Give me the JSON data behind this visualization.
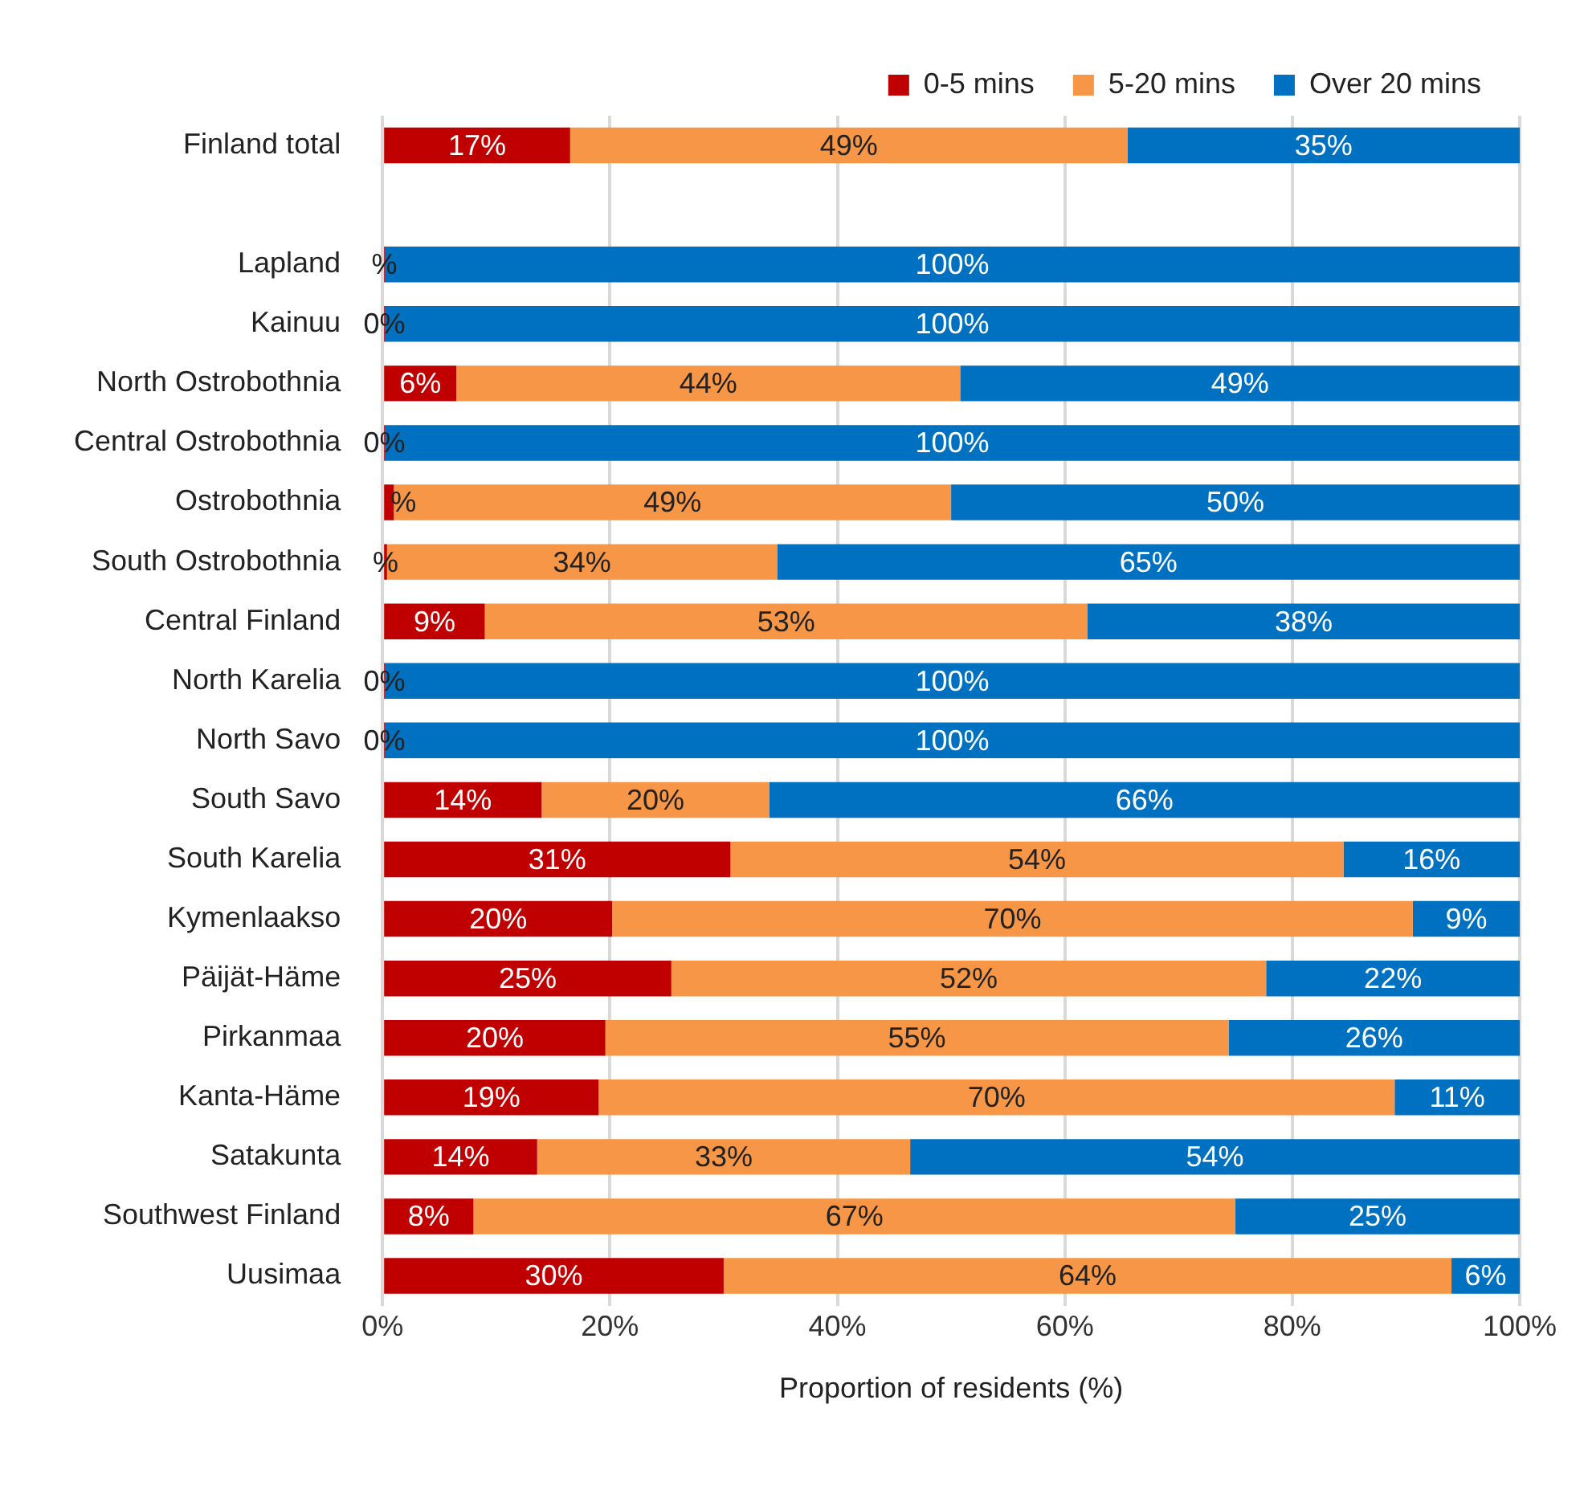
{
  "chart_data": {
    "type": "bar",
    "orientation": "horizontal",
    "stacked": true,
    "xlabel": "Proportion of residents (%)",
    "categories": [
      "Finland total",
      null,
      "Lapland",
      "Kainuu",
      "North Ostrobothnia",
      "Central Ostrobothnia",
      "Ostrobothnia",
      "South Ostrobothnia",
      "Central Finland",
      "North Karelia",
      "North Savo",
      "South Savo",
      "South Karelia",
      "Kymenlaakso",
      "Päijät-Häme",
      "Pirkanmaa",
      "Kanta-Häme",
      "Satakunta",
      "Southwest Finland",
      "Uusimaa"
    ],
    "series": [
      {
        "name": "0-5 mins",
        "color": "#c00000",
        "values": [
          16.5,
          null,
          0.2,
          0.2,
          6.5,
          0.2,
          1,
          0.4,
          9,
          0.2,
          0.2,
          14,
          30.6,
          20.2,
          25.4,
          19.6,
          19,
          13.6,
          8,
          30
        ],
        "value_labels": [
          "17%",
          null,
          "%",
          "0%",
          "6%",
          "0%",
          "%",
          "%",
          "9%",
          "0%",
          "0%",
          "14%",
          "31%",
          "20%",
          "25%",
          "20%",
          "19%",
          "14%",
          "8%",
          "30%"
        ]
      },
      {
        "name": "5-20 mins",
        "color": "#f79646",
        "values": [
          49,
          null,
          0,
          0,
          44.3,
          0,
          49,
          34.3,
          53,
          0,
          0,
          20,
          53.9,
          70.4,
          52.3,
          54.8,
          70,
          32.8,
          67,
          64
        ],
        "value_labels": [
          "49%",
          null,
          null,
          null,
          "44%",
          null,
          "49%",
          "34%",
          "53%",
          null,
          null,
          "20%",
          "54%",
          "70%",
          "52%",
          "55%",
          "70%",
          "33%",
          "67%",
          "64%"
        ]
      },
      {
        "name": "Over 20 mins",
        "color": "#0070c0",
        "values": [
          34.5,
          null,
          99.8,
          99.8,
          49.2,
          99.8,
          50,
          65.3,
          38,
          99.8,
          99.8,
          66,
          15.5,
          9.4,
          22.3,
          25.6,
          11,
          53.6,
          25,
          6
        ],
        "value_labels": [
          "35%",
          null,
          "100%",
          "100%",
          "49%",
          "100%",
          "50%",
          "65%",
          "38%",
          "100%",
          "100%",
          "66%",
          "16%",
          "9%",
          "22%",
          "26%",
          "11%",
          "54%",
          "25%",
          "6%"
        ]
      }
    ],
    "xlim": [
      0,
      100
    ],
    "xticks": [
      {
        "value": 0,
        "label": "0%"
      },
      {
        "value": 20,
        "label": "20%"
      },
      {
        "value": 40,
        "label": "40%"
      },
      {
        "value": 60,
        "label": "60%"
      },
      {
        "value": 80,
        "label": "80%"
      },
      {
        "value": 100,
        "label": "100%"
      }
    ],
    "grid": "x",
    "legend": "top right"
  }
}
